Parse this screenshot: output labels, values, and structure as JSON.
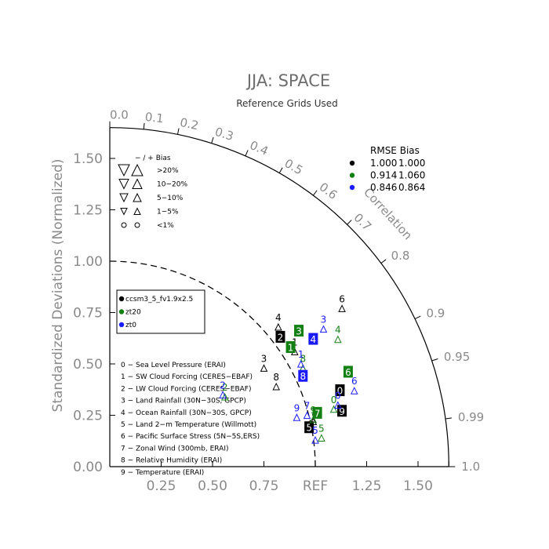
{
  "chart_data": {
    "type": "taylor",
    "title": "JJA: SPACE",
    "subtitle": "Reference Grids Used",
    "ylabel": "Standardized Deviations (Normalized)",
    "corr_label": "Correlation",
    "ref_label": "REF",
    "x_ticks": [
      "0.00",
      "0.25",
      "0.50",
      "0.75",
      "1.25",
      "1.50"
    ],
    "y_ticks": [
      "0.00",
      "0.25",
      "0.50",
      "0.75",
      "1.00",
      "1.25",
      "1.50"
    ],
    "corr_ticks": [
      "0.0",
      "0.1",
      "0.2",
      "0.3",
      "0.4",
      "0.5",
      "0.6",
      "0.7",
      "0.8",
      "0.9",
      "0.95",
      "0.99",
      "1.0"
    ],
    "bias_legend": {
      "header": "−  /  +     Bias",
      "rows": [
        ">20%",
        "10−20%",
        "5−10%",
        "1−5%",
        "<1%"
      ]
    },
    "rmse_legend": {
      "header": "RMSE  Bias",
      "rows": [
        {
          "color": "#000000",
          "rmse": "1.000",
          "bias": "1.000"
        },
        {
          "color": "#138013",
          "rmse": "0.914",
          "bias": "1.060"
        },
        {
          "color": "#1a1aff",
          "rmse": "0.846",
          "bias": "0.864"
        }
      ]
    },
    "cases": [
      {
        "name": "ccsm3_5_fv1.9x2.5",
        "color": "#000000"
      },
      {
        "name": "zt20",
        "color": "#138013"
      },
      {
        "name": "zt0",
        "color": "#1a1aff"
      }
    ],
    "variables": [
      "0 − Sea Level Pressure (ERAI)",
      "1 − SW Cloud Forcing (CERES−EBAF)",
      "2 − LW Cloud Forcing (CERES−EBAF)",
      "3 − Land Rainfall (30N−30S, GPCP)",
      "4 − Ocean Rainfall (30N−30S, GPCP)",
      "5 − Land 2−m Temperature (Willmott)",
      "6 − Pacific Surface Stress (5N−5S,ERS)",
      "7 − Zonal Wind (300mb, ERAI)",
      "8 − Relative Humidity (ERAI)",
      "9 − Temperature (ERAI)"
    ],
    "points": [
      {
        "id": "0",
        "case": 0,
        "x": 1.12,
        "y": 0.37,
        "box": true
      },
      {
        "id": "1",
        "case": 0,
        "x": 0.9,
        "y": 0.59
      },
      {
        "id": "2",
        "case": 0,
        "x": 0.83,
        "y": 0.63,
        "box": true
      },
      {
        "id": "3",
        "case": 0,
        "x": 0.75,
        "y": 0.51
      },
      {
        "id": "4",
        "case": 0,
        "x": 0.82,
        "y": 0.71
      },
      {
        "id": "5",
        "case": 0,
        "x": 0.97,
        "y": 0.19,
        "box": true
      },
      {
        "id": "6",
        "case": 0,
        "x": 1.13,
        "y": 0.8
      },
      {
        "id": "7",
        "case": 0,
        "x": 0.99,
        "y": 0.25
      },
      {
        "id": "8",
        "case": 0,
        "x": 0.81,
        "y": 0.42
      },
      {
        "id": "9",
        "case": 0,
        "x": 1.13,
        "y": 0.27,
        "box": true
      },
      {
        "id": "0",
        "case": 1,
        "x": 1.09,
        "y": 0.31
      },
      {
        "id": "1",
        "case": 1,
        "x": 0.88,
        "y": 0.58,
        "box": true
      },
      {
        "id": "2",
        "case": 1,
        "x": 0.56,
        "y": 0.37
      },
      {
        "id": "3",
        "case": 1,
        "x": 0.92,
        "y": 0.66,
        "box": true
      },
      {
        "id": "4",
        "case": 1,
        "x": 1.11,
        "y": 0.65
      },
      {
        "id": "5",
        "case": 1,
        "x": 1.03,
        "y": 0.17
      },
      {
        "id": "6",
        "case": 1,
        "x": 1.16,
        "y": 0.46,
        "box": true
      },
      {
        "id": "7",
        "case": 1,
        "x": 1.01,
        "y": 0.26,
        "box": true
      },
      {
        "id": "8",
        "case": 1,
        "x": 0.94,
        "y": 0.51
      },
      {
        "id": "9",
        "case": 1,
        "x": 0.99,
        "y": 0.26
      },
      {
        "id": "0",
        "case": 2,
        "x": 1.11,
        "y": 0.33
      },
      {
        "id": "1",
        "case": 2,
        "x": 0.93,
        "y": 0.53
      },
      {
        "id": "2",
        "case": 2,
        "x": 0.55,
        "y": 0.38
      },
      {
        "id": "3",
        "case": 2,
        "x": 1.04,
        "y": 0.7
      },
      {
        "id": "4",
        "case": 2,
        "x": 0.99,
        "y": 0.62,
        "box": true
      },
      {
        "id": "5",
        "case": 2,
        "x": 1.0,
        "y": 0.16
      },
      {
        "id": "6",
        "case": 2,
        "x": 1.19,
        "y": 0.4
      },
      {
        "id": "7",
        "case": 2,
        "x": 0.96,
        "y": 0.28
      },
      {
        "id": "8",
        "case": 2,
        "x": 0.94,
        "y": 0.44,
        "box": true
      },
      {
        "id": "9",
        "case": 2,
        "x": 0.91,
        "y": 0.27
      }
    ]
  }
}
